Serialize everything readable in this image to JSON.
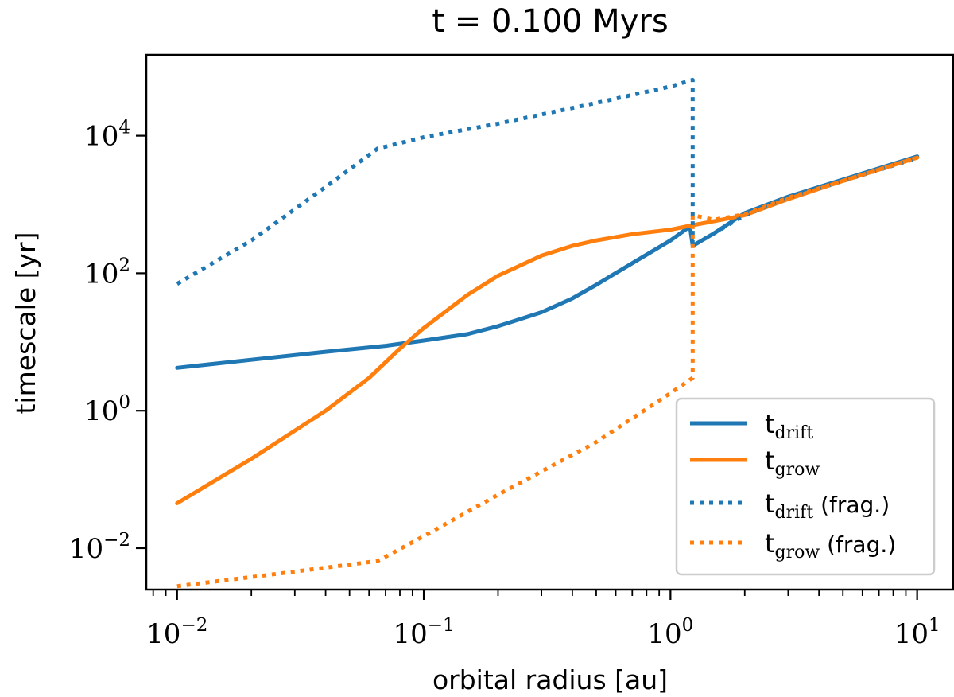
{
  "chart_data": {
    "type": "line",
    "title": "t = 0.100 Myrs",
    "xlabel": "orbital radius [au]",
    "ylabel": "timescale [yr]",
    "xscale": "log",
    "yscale": "log",
    "xlim": [
      0.0075,
      14
    ],
    "ylim": [
      0.0025,
      150000
    ],
    "grid": false,
    "legend_position": "lower-right",
    "x_ticks": [
      {
        "value": 0.01,
        "base": "10",
        "exp": "−2"
      },
      {
        "value": 0.1,
        "base": "10",
        "exp": "−1"
      },
      {
        "value": 1,
        "base": "10",
        "exp": "0"
      },
      {
        "value": 10,
        "base": "10",
        "exp": "1"
      }
    ],
    "y_ticks": [
      {
        "value": 0.01,
        "base": "10",
        "exp": "−2"
      },
      {
        "value": 1,
        "base": "10",
        "exp": "0"
      },
      {
        "value": 100,
        "base": "10",
        "exp": "2"
      },
      {
        "value": 10000,
        "base": "10",
        "exp": "4"
      }
    ],
    "series": [
      {
        "name": "t_drift",
        "legend_main": "t",
        "legend_sub": "drift",
        "legend_suffix": "",
        "color": "#1f77b4",
        "style": "solid",
        "x": [
          0.01,
          0.02,
          0.04,
          0.07,
          0.1,
          0.15,
          0.2,
          0.3,
          0.4,
          0.5,
          0.7,
          1.0,
          1.2,
          1.23,
          1.5,
          2.0,
          3.0,
          5.0,
          10.0
        ],
        "y": [
          4.2,
          5.5,
          7.2,
          8.8,
          10.5,
          13,
          17,
          27,
          43,
          68,
          140,
          300,
          480,
          250,
          380,
          750,
          1300,
          2300,
          5000
        ]
      },
      {
        "name": "t_grow",
        "legend_main": "t",
        "legend_sub": "grow",
        "legend_suffix": "",
        "color": "#ff7f0e",
        "style": "solid",
        "x": [
          0.01,
          0.02,
          0.04,
          0.06,
          0.08,
          0.1,
          0.15,
          0.2,
          0.3,
          0.4,
          0.5,
          0.7,
          1.0,
          1.23,
          1.5,
          2.0,
          3.0,
          5.0,
          10.0
        ],
        "y": [
          0.045,
          0.2,
          1.0,
          3.0,
          8.0,
          16,
          48,
          92,
          180,
          250,
          300,
          370,
          430,
          500,
          570,
          700,
          1200,
          2200,
          4800
        ]
      },
      {
        "name": "t_drift (frag.)",
        "legend_main": "t",
        "legend_sub": "drift",
        "legend_suffix": " (frag.)",
        "color": "#1f77b4",
        "style": "dotted",
        "x": [
          0.01,
          0.02,
          0.04,
          0.065,
          0.1,
          0.2,
          0.5,
          1.0,
          1.23,
          1.23,
          1.23,
          1.5,
          2.0,
          3.0,
          5.0,
          10.0
        ],
        "y": [
          70,
          300,
          1800,
          6500,
          9500,
          15000,
          30000,
          52000,
          65000,
          2000,
          250,
          380,
          700,
          1250,
          2200,
          4700
        ]
      },
      {
        "name": "t_grow (frag.)",
        "legend_main": "t",
        "legend_sub": "grow",
        "legend_suffix": " (frag.)",
        "color": "#ff7f0e",
        "style": "dotted",
        "x": [
          0.01,
          0.02,
          0.04,
          0.065,
          0.1,
          0.2,
          0.5,
          1.0,
          1.23,
          1.23,
          1.5,
          2.0,
          3.0,
          5.0,
          10.0
        ],
        "y": [
          0.0028,
          0.0038,
          0.0052,
          0.0065,
          0.015,
          0.06,
          0.35,
          1.8,
          3.0,
          700,
          600,
          720,
          1250,
          2200,
          4800
        ]
      }
    ]
  }
}
